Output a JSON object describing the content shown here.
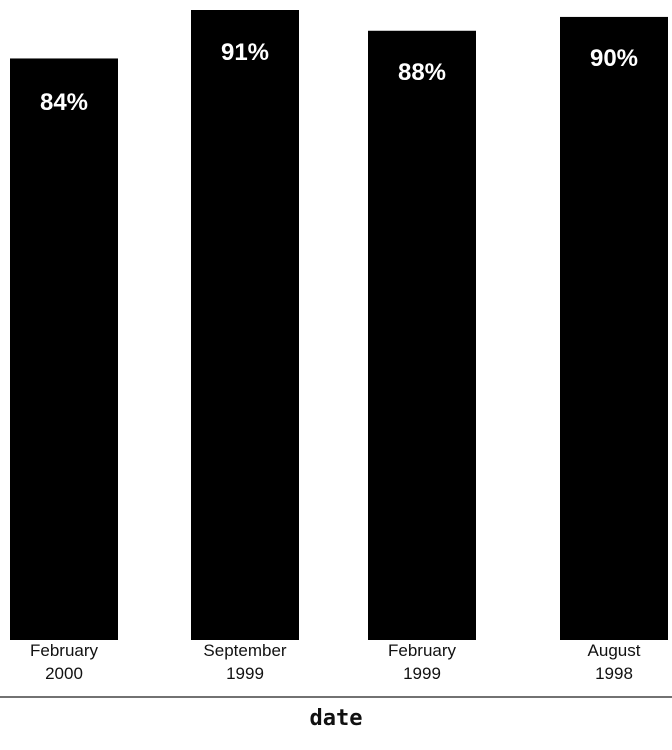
{
  "chart_data": {
    "type": "bar",
    "categories": [
      [
        "February",
        "2000"
      ],
      [
        "September",
        "1999"
      ],
      [
        "February",
        "1999"
      ],
      [
        "August",
        "1998"
      ]
    ],
    "values": [
      84,
      91,
      88,
      90
    ],
    "value_labels": [
      "84%",
      "91%",
      "88%",
      "90%"
    ],
    "xlabel": "date",
    "ylabel": "",
    "title": "",
    "ylim": [
      0,
      91
    ],
    "grid": false,
    "bar_color": "#000000",
    "label_color": "#ffffff"
  }
}
